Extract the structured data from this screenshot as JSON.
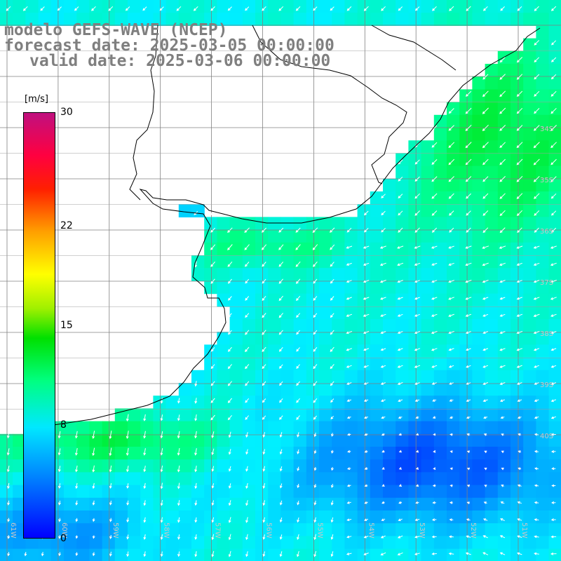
{
  "title": {
    "line1": "modelo GEFS-WAVE (NCEP)",
    "line2": "forecast date: 2025-03-05 00:00:00",
    "line3": "valid date: 2025-03-06 00:00:00"
  },
  "colorbar": {
    "unit": "[m/s]",
    "ticks": [
      {
        "label": "30",
        "value": 30
      },
      {
        "label": "22",
        "value": 22
      },
      {
        "label": "15",
        "value": 15
      },
      {
        "label": "8",
        "value": 8
      },
      {
        "label": "0",
        "value": 0
      }
    ],
    "range": [
      0,
      30
    ]
  },
  "map": {
    "grid_longitudes": [
      -61,
      -60,
      -59,
      -58,
      -57,
      -56,
      -55,
      -54,
      -53,
      -52,
      -51
    ],
    "grid_latitudes": [
      -32,
      -33,
      -34,
      -35,
      -36,
      -37,
      -38,
      -39,
      -40
    ],
    "lat_labels": [
      "34S",
      "35S",
      "36S",
      "37S",
      "38S",
      "39S",
      "40S"
    ],
    "lon_labels": [
      "61W",
      "60W",
      "59W",
      "58W",
      "57W",
      "56W",
      "55W",
      "54W",
      "53W",
      "52W",
      "51W"
    ],
    "colors": {
      "land": "#ffffff",
      "grid": "#808080",
      "coast": "#000000",
      "arrows": "#ffffff",
      "title": "#7f7f7f"
    }
  }
}
